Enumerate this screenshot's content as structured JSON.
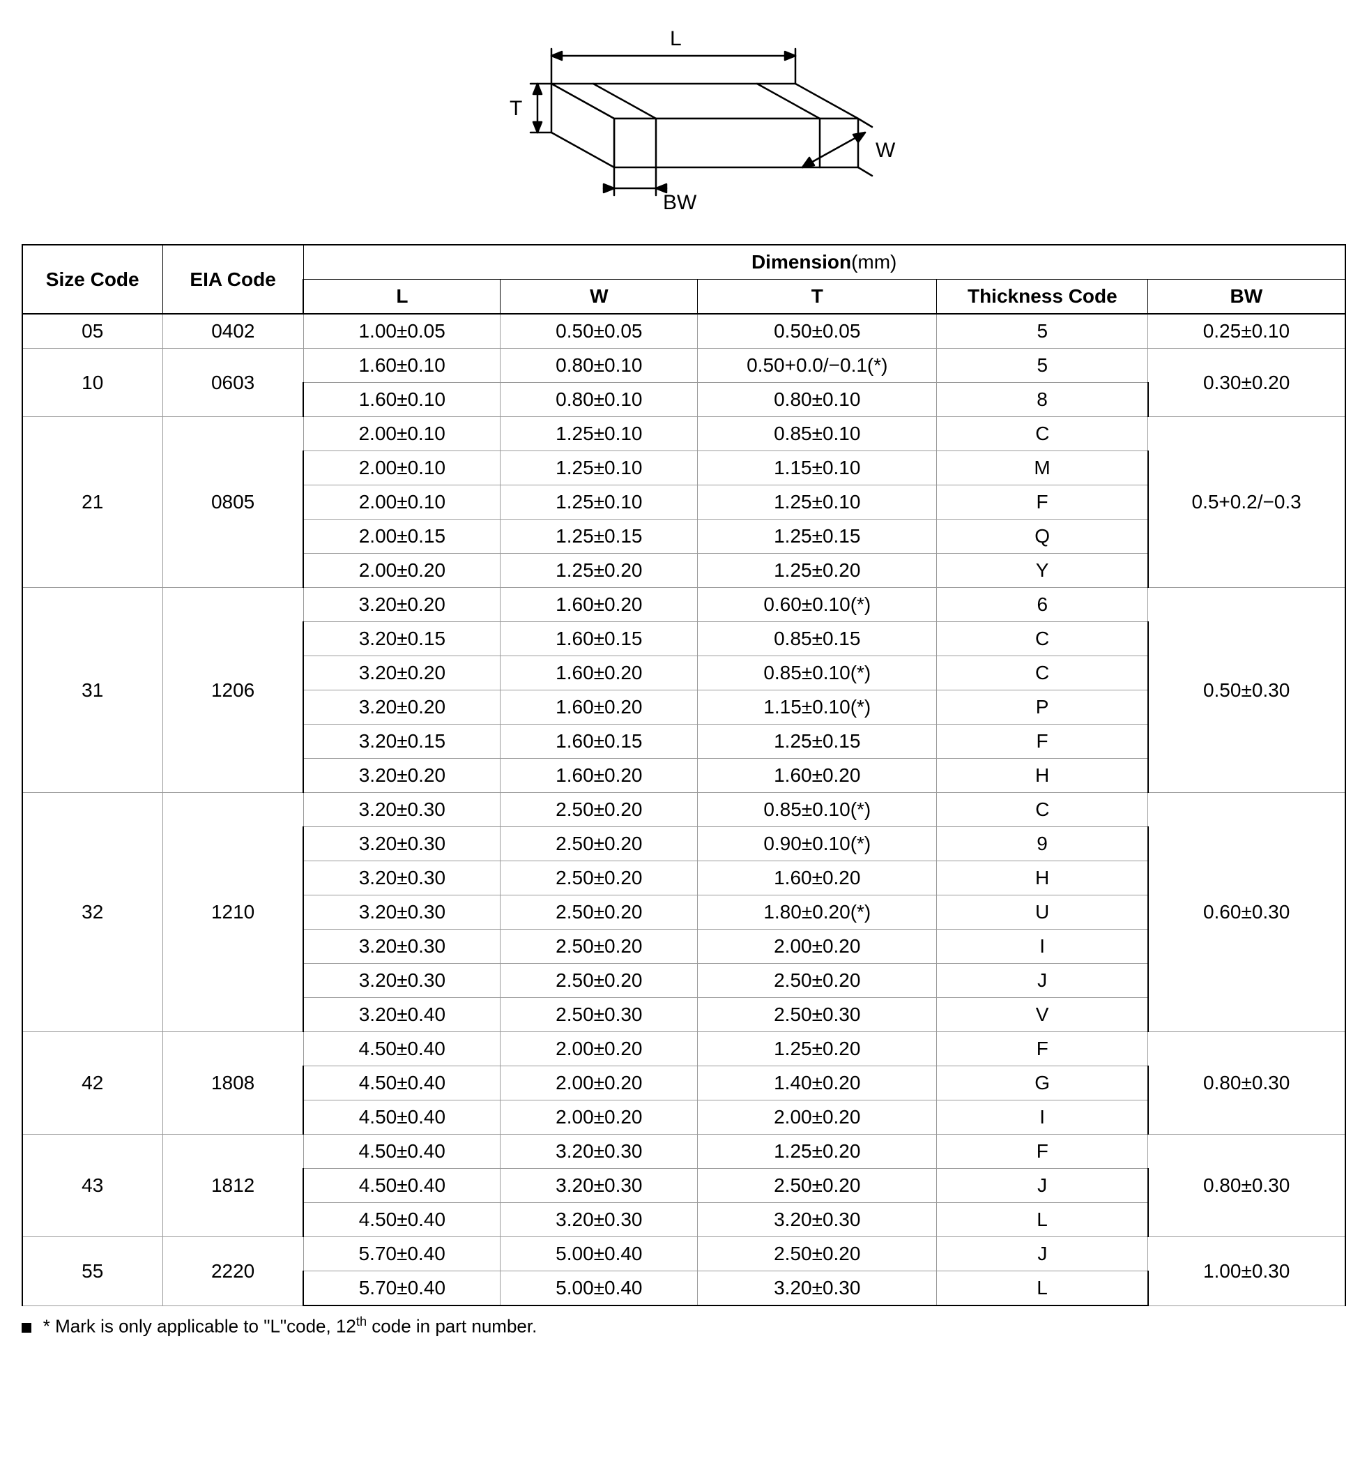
{
  "diagram": {
    "labels": {
      "L": "L",
      "W": "W",
      "T": "T",
      "BW": "BW"
    },
    "stroke": "#000000",
    "fill": "#ffffff"
  },
  "table": {
    "header": {
      "size_code": "Size Code",
      "eia_code": "EIA Code",
      "dimension": "Dimension",
      "unit": "(mm)",
      "L": "L",
      "W": "W",
      "T": "T",
      "thickness_code": "Thickness  Code",
      "BW": "BW"
    },
    "groups": [
      {
        "size": "05",
        "eia": "0402",
        "rows": [
          {
            "L": "1.00±0.05",
            "W": "0.50±0.05",
            "T": "0.50±0.05",
            "tc": "5"
          }
        ],
        "bw": "0.25±0.10"
      },
      {
        "size": "10",
        "eia": "0603",
        "rows": [
          {
            "L": "1.60±0.10",
            "W": "0.80±0.10",
            "T": "0.50+0.0/−0.1(*)",
            "tc": "5"
          },
          {
            "L": "1.60±0.10",
            "W": "0.80±0.10",
            "T": "0.80±0.10",
            "tc": "8"
          }
        ],
        "bw": "0.30±0.20"
      },
      {
        "size": "21",
        "eia": "0805",
        "rows": [
          {
            "L": "2.00±0.10",
            "W": "1.25±0.10",
            "T": "0.85±0.10",
            "tc": "C"
          },
          {
            "L": "2.00±0.10",
            "W": "1.25±0.10",
            "T": "1.15±0.10",
            "tc": "M"
          },
          {
            "L": "2.00±0.10",
            "W": "1.25±0.10",
            "T": "1.25±0.10",
            "tc": "F"
          },
          {
            "L": "2.00±0.15",
            "W": "1.25±0.15",
            "T": "1.25±0.15",
            "tc": "Q"
          },
          {
            "L": "2.00±0.20",
            "W": "1.25±0.20",
            "T": "1.25±0.20",
            "tc": "Y"
          }
        ],
        "bw": "0.5+0.2/−0.3"
      },
      {
        "size": "31",
        "eia": "1206",
        "rows": [
          {
            "L": "3.20±0.20",
            "W": "1.60±0.20",
            "T": "0.60±0.10(*)",
            "tc": "6"
          },
          {
            "L": "3.20±0.15",
            "W": "1.60±0.15",
            "T": "0.85±0.15",
            "tc": "C"
          },
          {
            "L": "3.20±0.20",
            "W": "1.60±0.20",
            "T": "0.85±0.10(*)",
            "tc": "C"
          },
          {
            "L": "3.20±0.20",
            "W": "1.60±0.20",
            "T": "1.15±0.10(*)",
            "tc": "P"
          },
          {
            "L": "3.20±0.15",
            "W": "1.60±0.15",
            "T": "1.25±0.15",
            "tc": "F"
          },
          {
            "L": "3.20±0.20",
            "W": "1.60±0.20",
            "T": "1.60±0.20",
            "tc": "H"
          }
        ],
        "bw": "0.50±0.30"
      },
      {
        "size": "32",
        "eia": "1210",
        "rows": [
          {
            "L": "3.20±0.30",
            "W": "2.50±0.20",
            "T": "0.85±0.10(*)",
            "tc": "C"
          },
          {
            "L": "3.20±0.30",
            "W": "2.50±0.20",
            "T": "0.90±0.10(*)",
            "tc": "9"
          },
          {
            "L": "3.20±0.30",
            "W": "2.50±0.20",
            "T": "1.60±0.20",
            "tc": "H"
          },
          {
            "L": "3.20±0.30",
            "W": "2.50±0.20",
            "T": "1.80±0.20(*)",
            "tc": "U"
          },
          {
            "L": "3.20±0.30",
            "W": "2.50±0.20",
            "T": "2.00±0.20",
            "tc": "I"
          },
          {
            "L": "3.20±0.30",
            "W": "2.50±0.20",
            "T": "2.50±0.20",
            "tc": "J"
          },
          {
            "L": "3.20±0.40",
            "W": "2.50±0.30",
            "T": "2.50±0.30",
            "tc": "V"
          }
        ],
        "bw": "0.60±0.30"
      },
      {
        "size": "42",
        "eia": "1808",
        "rows": [
          {
            "L": "4.50±0.40",
            "W": "2.00±0.20",
            "T": "1.25±0.20",
            "tc": "F"
          },
          {
            "L": "4.50±0.40",
            "W": "2.00±0.20",
            "T": "1.40±0.20",
            "tc": "G"
          },
          {
            "L": "4.50±0.40",
            "W": "2.00±0.20",
            "T": "2.00±0.20",
            "tc": "I"
          }
        ],
        "bw": "0.80±0.30"
      },
      {
        "size": "43",
        "eia": "1812",
        "rows": [
          {
            "L": "4.50±0.40",
            "W": "3.20±0.30",
            "T": "1.25±0.20",
            "tc": "F"
          },
          {
            "L": "4.50±0.40",
            "W": "3.20±0.30",
            "T": "2.50±0.20",
            "tc": "J"
          },
          {
            "L": "4.50±0.40",
            "W": "3.20±0.30",
            "T": "3.20±0.30",
            "tc": "L"
          }
        ],
        "bw": "0.80±0.30"
      },
      {
        "size": "55",
        "eia": "2220",
        "rows": [
          {
            "L": "5.70±0.40",
            "W": "5.00±0.40",
            "T": "2.50±0.20",
            "tc": "J"
          },
          {
            "L": "5.70±0.40",
            "W": "5.00±0.40",
            "T": "3.20±0.30",
            "tc": "L"
          }
        ],
        "bw": "1.00±0.30"
      }
    ]
  },
  "footnote": "* Mark is only applicable to \"L\"code, 12",
  "footnote_suffix": " code in part number.",
  "footnote_sup": "th"
}
